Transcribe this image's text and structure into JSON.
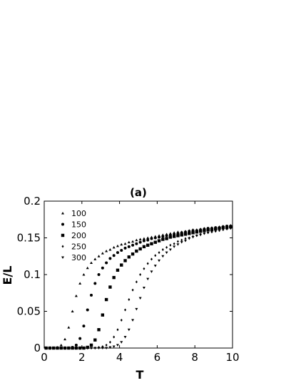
{
  "chart_data": {
    "type": "scatter",
    "title": "(a)",
    "xlabel": "T",
    "ylabel": "E/L",
    "xlim": [
      0,
      10
    ],
    "ylim": [
      0,
      0.2
    ],
    "xticks": [
      0,
      2,
      4,
      6,
      8,
      10
    ],
    "xtick_labels": [
      "0",
      "2",
      "4",
      "6",
      "8",
      "10"
    ],
    "yticks": [
      0,
      0.05,
      0.1,
      0.15,
      0.2
    ],
    "ytick_labels": [
      "0",
      "0.05",
      "0.1",
      "0.15",
      "0.2"
    ],
    "grid": false,
    "legend_position": "top-left",
    "x": [
      0.1,
      0.3,
      0.5,
      0.7,
      0.9,
      1.1,
      1.3,
      1.5,
      1.7,
      1.9,
      2.1,
      2.3,
      2.5,
      2.7,
      2.9,
      3.1,
      3.3,
      3.5,
      3.7,
      3.9,
      4.1,
      4.3,
      4.5,
      4.7,
      4.9,
      5.1,
      5.3,
      5.5,
      5.7,
      5.9,
      6.1,
      6.3,
      6.5,
      6.7,
      6.9,
      7.1,
      7.3,
      7.5,
      7.7,
      7.9,
      8.1,
      8.3,
      8.5,
      8.7,
      8.9,
      9.1,
      9.3,
      9.5,
      9.7,
      9.9
    ],
    "series": [
      {
        "name": "100",
        "marker": "triangle-up",
        "values": [
          0.0,
          0.0,
          0.0,
          0.001,
          0.004,
          0.012,
          0.028,
          0.05,
          0.071,
          0.088,
          0.1,
          0.109,
          0.116,
          0.121,
          0.125,
          0.129,
          0.132,
          0.134,
          0.137,
          0.139,
          0.141,
          0.142,
          0.144,
          0.145,
          0.147,
          0.148,
          0.149,
          0.15,
          0.151,
          0.152,
          0.153,
          0.154,
          0.155,
          0.156,
          0.157,
          0.158,
          0.158,
          0.159,
          0.16,
          0.161,
          0.161,
          0.162,
          0.163,
          0.163,
          0.164,
          0.164,
          0.165,
          0.166,
          0.166,
          0.167
        ]
      },
      {
        "name": "150",
        "marker": "circle",
        "values": [
          0.0,
          0.0,
          0.0,
          0.0,
          0.0,
          0.0,
          0.0,
          0.001,
          0.004,
          0.013,
          0.03,
          0.052,
          0.072,
          0.088,
          0.1,
          0.109,
          0.116,
          0.122,
          0.126,
          0.13,
          0.133,
          0.136,
          0.138,
          0.14,
          0.142,
          0.144,
          0.146,
          0.147,
          0.149,
          0.15,
          0.151,
          0.152,
          0.153,
          0.154,
          0.155,
          0.156,
          0.157,
          0.158,
          0.159,
          0.16,
          0.16,
          0.161,
          0.162,
          0.163,
          0.163,
          0.164,
          0.164,
          0.165,
          0.166,
          0.166
        ]
      },
      {
        "name": "200",
        "marker": "square",
        "values": [
          0.0,
          0.0,
          0.0,
          0.0,
          0.0,
          0.0,
          0.0,
          0.0,
          0.0,
          0.0,
          0.0,
          0.001,
          0.004,
          0.011,
          0.025,
          0.045,
          0.066,
          0.083,
          0.096,
          0.106,
          0.113,
          0.119,
          0.124,
          0.128,
          0.132,
          0.135,
          0.138,
          0.14,
          0.142,
          0.144,
          0.146,
          0.148,
          0.149,
          0.151,
          0.152,
          0.153,
          0.154,
          0.155,
          0.156,
          0.157,
          0.158,
          0.159,
          0.16,
          0.161,
          0.161,
          0.162,
          0.163,
          0.164,
          0.164,
          0.165
        ]
      },
      {
        "name": "250",
        "marker": "diamond",
        "values": [
          0.0,
          0.0,
          0.0,
          0.0,
          0.0,
          0.0,
          0.0,
          0.0,
          0.0,
          0.0,
          0.0,
          0.0,
          0.0,
          0.0,
          0.001,
          0.002,
          0.004,
          0.008,
          0.015,
          0.025,
          0.038,
          0.052,
          0.066,
          0.079,
          0.09,
          0.1,
          0.108,
          0.115,
          0.121,
          0.126,
          0.13,
          0.134,
          0.137,
          0.14,
          0.142,
          0.145,
          0.147,
          0.149,
          0.15,
          0.152,
          0.153,
          0.155,
          0.156,
          0.157,
          0.158,
          0.159,
          0.16,
          0.161,
          0.162,
          0.163
        ]
      },
      {
        "name": "300",
        "marker": "triangle-down",
        "values": [
          0.0,
          0.0,
          0.0,
          0.0,
          0.0,
          0.0,
          0.0,
          0.0,
          0.0,
          0.0,
          0.0,
          0.0,
          0.0,
          0.0,
          0.0,
          0.0,
          0.0,
          0.001,
          0.002,
          0.004,
          0.008,
          0.015,
          0.025,
          0.038,
          0.053,
          0.068,
          0.082,
          0.094,
          0.104,
          0.112,
          0.119,
          0.125,
          0.13,
          0.134,
          0.138,
          0.141,
          0.144,
          0.146,
          0.149,
          0.151,
          0.153,
          0.154,
          0.156,
          0.157,
          0.159,
          0.16,
          0.161,
          0.162,
          0.163,
          0.164
        ]
      }
    ]
  }
}
